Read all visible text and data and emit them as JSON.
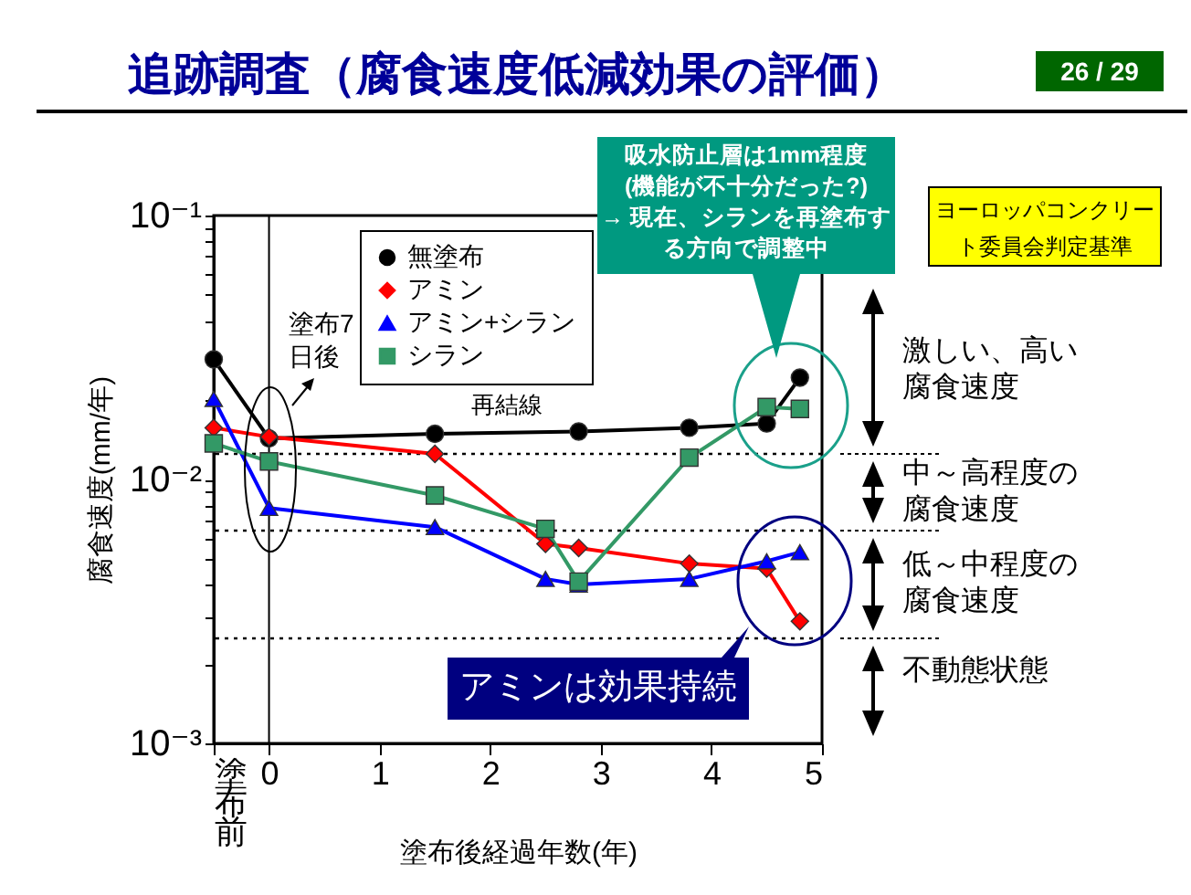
{
  "chart_data": {
    "type": "line",
    "title": "追跡調査（腐食速度低減効果の評価）",
    "xlabel": "塗布後経過年数(年)",
    "ylabel": "腐食速度(mm/年)",
    "x": [
      -0.5,
      0,
      1.5,
      2.5,
      2.8,
      3.8,
      4.5,
      4.8
    ],
    "series": [
      {
        "name": "無塗布",
        "color": "#000000",
        "marker": "circle",
        "values": [
          0.0285,
          0.0143,
          0.0149,
          null,
          0.0152,
          0.0157,
          0.0163,
          0.0243
        ]
      },
      {
        "name": "アミン",
        "color": "#ff0000",
        "marker": "diamond",
        "values": [
          0.0157,
          0.0145,
          0.0125,
          0.0057,
          0.0055,
          0.0048,
          0.0046,
          0.0029
        ]
      },
      {
        "name": "アミン+シラン",
        "color": "#0000ff",
        "marker": "triangle",
        "values": [
          0.0202,
          0.0078,
          0.0066,
          0.0042,
          0.004,
          0.0042,
          0.0049,
          0.0053
        ]
      },
      {
        "name": "シラン",
        "color": "#339966",
        "marker": "square",
        "values": [
          0.0137,
          0.0117,
          0.0087,
          0.0065,
          0.0041,
          0.0121,
          0.0188,
          0.0185
        ]
      }
    ],
    "xlim": [
      -0.5,
      5
    ],
    "xticks": [
      {
        "value": -0.5,
        "label": "塗布前"
      },
      0,
      1,
      2,
      3,
      4,
      5
    ],
    "ylim": [
      0.001,
      0.1
    ],
    "log": "y",
    "yticks": [
      {
        "value": 0.001,
        "label": "10⁻³"
      },
      {
        "value": 0.002,
        "label": null
      },
      {
        "value": 0.003,
        "label": null
      },
      {
        "value": 0.004,
        "label": null
      },
      {
        "value": 0.005,
        "label": null
      },
      {
        "value": 0.006,
        "label": null
      },
      {
        "value": 0.007,
        "label": null
      },
      {
        "value": 0.008,
        "label": null
      },
      {
        "value": 0.009,
        "label": null
      },
      {
        "value": 0.01,
        "label": "10⁻²"
      },
      {
        "value": 0.02,
        "label": null
      },
      {
        "value": 0.03,
        "label": null
      },
      {
        "value": 0.04,
        "label": null
      },
      {
        "value": 0.05,
        "label": null
      },
      {
        "value": 0.06,
        "label": null
      },
      {
        "value": 0.07,
        "label": null
      },
      {
        "value": 0.08,
        "label": null
      },
      {
        "value": 0.09,
        "label": null
      },
      {
        "value": 0.1,
        "label": "10⁻¹"
      }
    ],
    "grid": false,
    "legend": "top left",
    "line_style": "solid",
    "ref_lines": [
      {
        "axis": "x",
        "value": 0,
        "color": "#000000",
        "line_style": "solid"
      },
      {
        "axis": "y",
        "value": 0.0125,
        "color": "#000000",
        "line_style": "dotted"
      },
      {
        "axis": "y",
        "value": 0.0064,
        "color": "#000000",
        "line_style": "dotted"
      },
      {
        "axis": "y",
        "value": 0.0025,
        "color": "#000000",
        "line_style": "dotted"
      }
    ],
    "annotations": [
      "塗布7日後",
      "再結線",
      "吸水防止層は1mm程度\n(機能が不十分だった?)\n→ 現在、シランを再塗布する方向で調整中",
      "アミンは効果持続",
      "ヨーロッパコンクリート委員会判定基準",
      "26 / 29",
      "激しい、高い腐食速度",
      "中～高程度の腐食速度",
      "低～中程度の腐食速度",
      "不動態状態"
    ]
  }
}
